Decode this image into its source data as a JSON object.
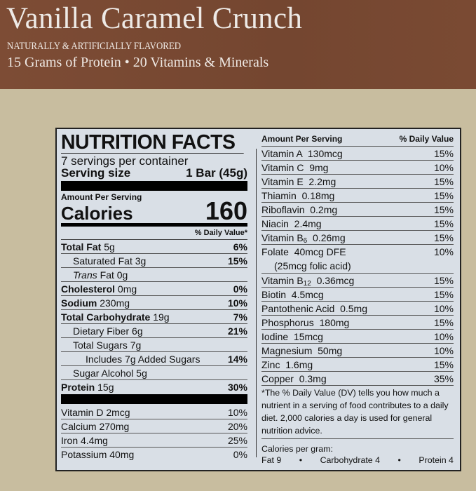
{
  "banner": {
    "title": "Vanilla Caramel Crunch",
    "subtitle": "NATURALLY & ARTIFICIALLY FLAVORED",
    "tagline": "15 Grams of Protein • 20 Vitamins & Minerals"
  },
  "label": {
    "title": "NUTRITION FACTS",
    "servings": "7 servings per container",
    "serving_size_label": "Serving size",
    "serving_size_value": "1 Bar (45g)",
    "amount_per_serving": "Amount Per Serving",
    "calories_label": "Calories",
    "calories_value": "160",
    "dv_header": "% Daily Value*",
    "nutrients": [
      {
        "name": "Total Fat",
        "amount": "5g",
        "dv": "6%"
      },
      {
        "name": "Saturated Fat",
        "amount": "3g",
        "dv": "15%"
      },
      {
        "name": "Trans",
        "amount": "Fat 0g",
        "dv": ""
      },
      {
        "name": "Cholesterol",
        "amount": "0mg",
        "dv": "0%"
      },
      {
        "name": "Sodium",
        "amount": "230mg",
        "dv": "10%"
      },
      {
        "name": "Total Carbohydrate",
        "amount": "19g",
        "dv": "7%"
      },
      {
        "name": "Dietary Fiber",
        "amount": "6g",
        "dv": "21%"
      },
      {
        "name": "Total Sugars",
        "amount": "7g",
        "dv": ""
      },
      {
        "name": "Includes 7g Added Sugars",
        "amount": "",
        "dv": "14%"
      },
      {
        "name": "Sugar Alcohol",
        "amount": "5g",
        "dv": ""
      },
      {
        "name": "Protein",
        "amount": "15g",
        "dv": "30%"
      }
    ],
    "minerals": [
      {
        "text": "Vitamin D 2mcg",
        "dv": "10%"
      },
      {
        "text": "Calcium 270mg",
        "dv": "20%"
      },
      {
        "text": "Iron 4.4mg",
        "dv": "25%"
      },
      {
        "text": "Potassium 40mg",
        "dv": "0%"
      }
    ],
    "right_header_left": "Amount Per Serving",
    "right_header_right": "% Daily Value",
    "vitamins": [
      {
        "text": "Vitamin A  130mcg",
        "dv": "15%"
      },
      {
        "text": "Vitamin C  9mg",
        "dv": "10%"
      },
      {
        "text": "Vitamin E  2.2mg",
        "dv": "15%"
      },
      {
        "text": "Thiamin  0.18mg",
        "dv": "15%"
      },
      {
        "text": "Riboflavin  0.2mg",
        "dv": "15%"
      },
      {
        "text": "Niacin  2.4mg",
        "dv": "15%"
      },
      {
        "text": "Vitamin B",
        "sub": "6",
        "rest": "  0.26mg",
        "dv": "15%"
      },
      {
        "text": "Folate  40mcg DFE",
        "line2": "(25mcg folic acid)",
        "dv": "10%"
      },
      {
        "text": "Vitamin B",
        "sub": "12",
        "rest": "  0.36mcg",
        "dv": "15%"
      },
      {
        "text": "Biotin  4.5mcg",
        "dv": "15%"
      },
      {
        "text": "Pantothenic Acid  0.5mg",
        "dv": "10%"
      },
      {
        "text": "Phosphorus  180mg",
        "dv": "15%"
      },
      {
        "text": "Iodine  15mcg",
        "dv": "10%"
      },
      {
        "text": "Magnesium  50mg",
        "dv": "10%"
      },
      {
        "text": "Zinc  1.6mg",
        "dv": "15%"
      },
      {
        "text": "Copper  0.3mg",
        "dv": "35%"
      }
    ],
    "footnote": "*The % Daily Value (DV) tells you how much a nutrient in a serving of food contributes to a daily diet. 2,000 calories a day is used for general nutrition advice.",
    "calories_per_gram_label": "Calories per gram:",
    "cpg_fat": "Fat 9",
    "cpg_carb": "Carbohydrate 4",
    "cpg_protein": "Protein 4",
    "bullet": "•"
  },
  "colors": {
    "banner": "#7b4a33",
    "background": "#c8bd9f",
    "label": "#d9dfe6"
  }
}
